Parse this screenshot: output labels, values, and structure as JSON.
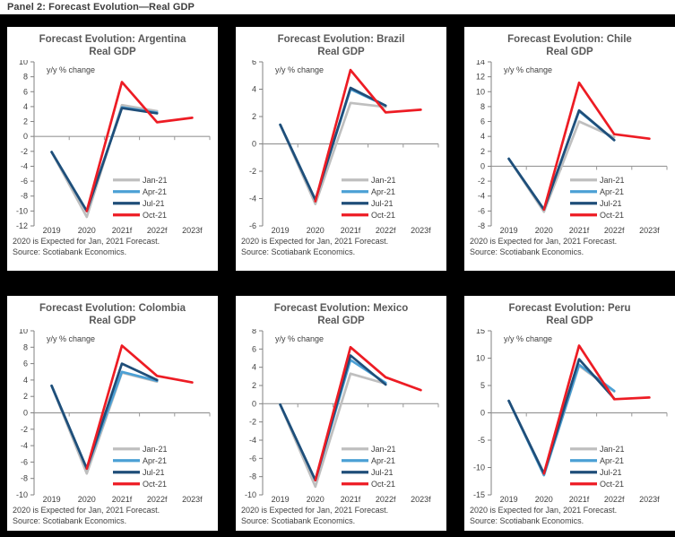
{
  "header": {
    "title": "Panel 2: Forecast Evolution—Real GDP"
  },
  "colors": {
    "jan21": "#BFBFBF",
    "apr21": "#4BA0D5",
    "jul21": "#1F4E79",
    "oct21": "#ED1C24",
    "axis": "#808080",
    "zero_line": "#999999",
    "label_text": "#404040",
    "title_text": "#595959",
    "panel_background": "#FFFFFF",
    "page_background": "#000000"
  },
  "chart_data": [
    {
      "type": "line",
      "title_line1": "Forecast Evolution: Argentina",
      "title_line2": "Real GDP",
      "ylabel_annotation": "y/y % change",
      "categories": [
        "2019",
        "2020",
        "2021f",
        "2022f",
        "2023f"
      ],
      "ylim": [
        -12,
        10
      ],
      "ytick_step": 2,
      "legend_position": "lower-right",
      "series": [
        {
          "name": "Jan-21",
          "color": "#BFBFBF",
          "values": [
            -2.1,
            -10.8,
            4.2,
            3.4,
            null
          ]
        },
        {
          "name": "Apr-21",
          "color": "#4BA0D5",
          "values": [
            -2.1,
            -10.0,
            3.9,
            3.2,
            null
          ]
        },
        {
          "name": "Jul-21",
          "color": "#1F4E79",
          "values": [
            -2.1,
            -10.0,
            3.8,
            3.1,
            null
          ]
        },
        {
          "name": "Oct-21",
          "color": "#ED1C24",
          "values": [
            null,
            -10.0,
            7.3,
            1.9,
            2.5
          ]
        }
      ],
      "footnote1": "2020 is Expected for Jan, 2021 Forecast.",
      "footnote2": "Source: Scotiabank Economics."
    },
    {
      "type": "line",
      "title_line1": "Forecast Evolution: Brazil",
      "title_line2": "Real GDP",
      "ylabel_annotation": "y/y % change",
      "categories": [
        "2019",
        "2020",
        "2021f",
        "2022f",
        "2023f"
      ],
      "ylim": [
        -6,
        6
      ],
      "ytick_step": 2,
      "legend_position": "lower-right",
      "series": [
        {
          "name": "Jan-21",
          "color": "#BFBFBF",
          "values": [
            1.4,
            -4.4,
            3.0,
            2.7,
            null
          ]
        },
        {
          "name": "Apr-21",
          "color": "#4BA0D5",
          "values": [
            1.4,
            -4.1,
            4.0,
            2.8,
            null
          ]
        },
        {
          "name": "Jul-21",
          "color": "#1F4E79",
          "values": [
            1.4,
            -4.1,
            4.1,
            2.8,
            null
          ]
        },
        {
          "name": "Oct-21",
          "color": "#ED1C24",
          "values": [
            null,
            -4.2,
            5.4,
            2.3,
            2.5
          ]
        }
      ],
      "footnote1": "2020 is Expected for Jan, 2021 Forecast.",
      "footnote2": "Source: Scotiabank Economics."
    },
    {
      "type": "line",
      "title_line1": "Forecast Evolution: Chile",
      "title_line2": "Real GDP",
      "ylabel_annotation": "y/y % change",
      "categories": [
        "2019",
        "2020",
        "2021f",
        "2022f",
        "2023f"
      ],
      "ylim": [
        -8,
        14
      ],
      "ytick_step": 2,
      "legend_position": "lower-right",
      "series": [
        {
          "name": "Jan-21",
          "color": "#BFBFBF",
          "values": [
            1.0,
            -6.1,
            6.0,
            3.9,
            null
          ]
        },
        {
          "name": "Apr-21",
          "color": "#4BA0D5",
          "values": [
            1.0,
            -5.8,
            7.4,
            3.5,
            null
          ]
        },
        {
          "name": "Jul-21",
          "color": "#1F4E79",
          "values": [
            1.0,
            -5.8,
            7.5,
            3.5,
            null
          ]
        },
        {
          "name": "Oct-21",
          "color": "#ED1C24",
          "values": [
            null,
            -5.8,
            11.2,
            4.3,
            3.7
          ]
        }
      ],
      "footnote1": "2020 is Expected for Jan, 2021 Forecast.",
      "footnote2": "Source: Scotiabank Economics."
    },
    {
      "type": "line",
      "title_line1": "Forecast Evolution: Colombia",
      "title_line2": "Real GDP",
      "ylabel_annotation": "y/y % change",
      "categories": [
        "2019",
        "2020",
        "2021f",
        "2022f",
        "2023f"
      ],
      "ylim": [
        -10,
        10
      ],
      "ytick_step": 2,
      "legend_position": "lower-right",
      "series": [
        {
          "name": "Jan-21",
          "color": "#BFBFBF",
          "values": [
            3.3,
            -7.4,
            4.9,
            3.8,
            null
          ]
        },
        {
          "name": "Apr-21",
          "color": "#4BA0D5",
          "values": [
            3.3,
            -6.8,
            5.0,
            3.9,
            null
          ]
        },
        {
          "name": "Jul-21",
          "color": "#1F4E79",
          "values": [
            3.3,
            -6.8,
            6.0,
            4.0,
            null
          ]
        },
        {
          "name": "Oct-21",
          "color": "#ED1C24",
          "values": [
            null,
            -6.8,
            8.2,
            4.5,
            3.7
          ]
        }
      ],
      "footnote1": "2020 is Expected for Jan, 2021 Forecast.",
      "footnote2": "Source: Scotiabank Economics."
    },
    {
      "type": "line",
      "title_line1": "Forecast Evolution: Mexico",
      "title_line2": "Real GDP",
      "ylabel_annotation": "y/y % change",
      "categories": [
        "2019",
        "2020",
        "2021f",
        "2022f",
        "2023f"
      ],
      "ylim": [
        -10,
        8
      ],
      "ytick_step": 2,
      "legend_position": "lower-right",
      "series": [
        {
          "name": "Jan-21",
          "color": "#BFBFBF",
          "values": [
            -0.1,
            -9.1,
            3.3,
            2.2,
            null
          ]
        },
        {
          "name": "Apr-21",
          "color": "#4BA0D5",
          "values": [
            -0.1,
            -8.4,
            4.8,
            2.3,
            null
          ]
        },
        {
          "name": "Jul-21",
          "color": "#1F4E79",
          "values": [
            -0.1,
            -8.4,
            5.3,
            2.1,
            null
          ]
        },
        {
          "name": "Oct-21",
          "color": "#ED1C24",
          "values": [
            null,
            -8.4,
            6.2,
            2.9,
            1.5
          ]
        }
      ],
      "footnote1": "2020 is Expected for Jan, 2021 Forecast.",
      "footnote2": "Source: Scotiabank Economics."
    },
    {
      "type": "line",
      "title_line1": "Forecast Evolution: Peru",
      "title_line2": "Real GDP",
      "ylabel_annotation": "y/y % change",
      "categories": [
        "2019",
        "2020",
        "2021f",
        "2022f",
        "2023f"
      ],
      "ylim": [
        -15,
        15
      ],
      "ytick_step": 5,
      "legend_position": "lower-right",
      "series": [
        {
          "name": "Jan-21",
          "color": "#BFBFBF",
          "values": [
            2.2,
            -11.4,
            8.6,
            3.9,
            null
          ]
        },
        {
          "name": "Apr-21",
          "color": "#4BA0D5",
          "values": [
            2.2,
            -11.4,
            8.8,
            4.0,
            null
          ]
        },
        {
          "name": "Jul-21",
          "color": "#1F4E79",
          "values": [
            2.2,
            -11.1,
            9.8,
            2.6,
            null
          ]
        },
        {
          "name": "Oct-21",
          "color": "#ED1C24",
          "values": [
            null,
            -11.1,
            12.3,
            2.5,
            2.8
          ]
        }
      ],
      "footnote1": "2020 is Expected for Jan, 2021 Forecast.",
      "footnote2": "Source: Scotiabank Economics."
    }
  ]
}
